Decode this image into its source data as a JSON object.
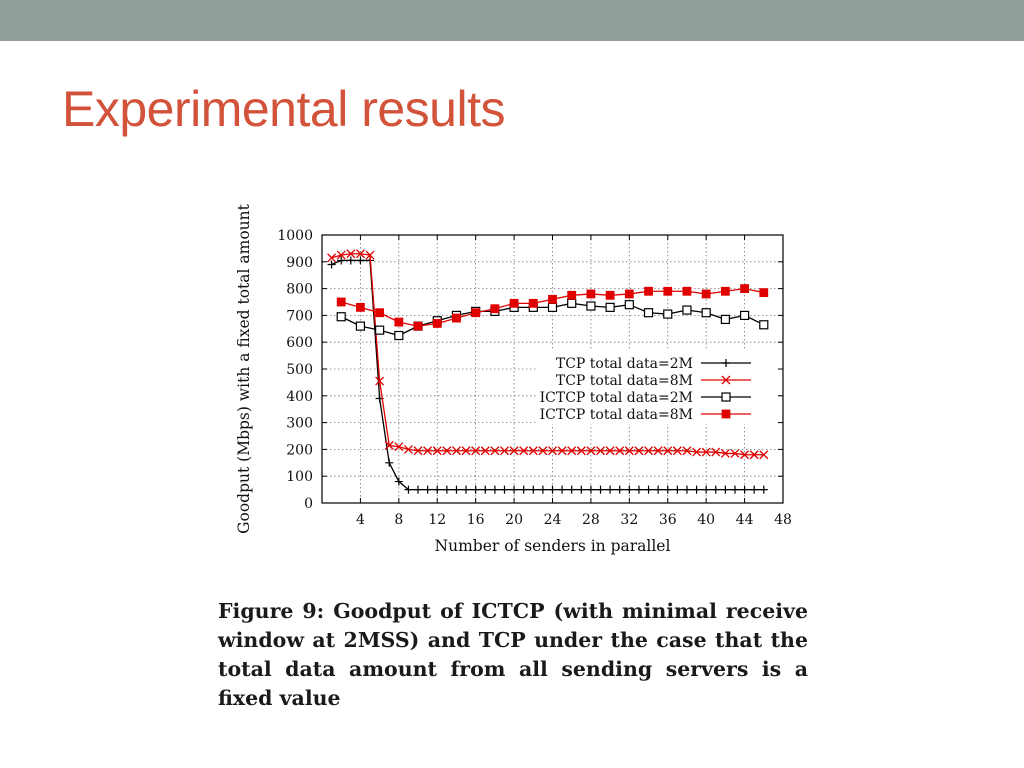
{
  "slide": {
    "title": "Experimental results",
    "caption": "Figure 9: Goodput of ICTCP (with minimal receive window at 2MSS) and TCP under the case that the total data amount from all sending servers is a fixed value"
  },
  "colors": {
    "topbar": "#919e98",
    "title": "#d2533a",
    "tcp": "#000000",
    "ictcp": "#e00000"
  },
  "chart_data": {
    "type": "line",
    "title": "",
    "xlabel": "Number of senders in parallel",
    "ylabel": "Goodput (Mbps) with a fixed total amount",
    "xlim": [
      0,
      48
    ],
    "ylim": [
      0,
      1000
    ],
    "xticks": [
      4,
      8,
      12,
      16,
      20,
      24,
      28,
      32,
      36,
      40,
      44,
      48
    ],
    "yticks": [
      0,
      100,
      200,
      300,
      400,
      500,
      600,
      700,
      800,
      900,
      1000
    ],
    "grid": true,
    "legend_position": "middle-right",
    "series": [
      {
        "name": "TCP total data=2M",
        "marker": "plus",
        "color": "#000000",
        "x": [
          1,
          2,
          3,
          4,
          5,
          6,
          7,
          8,
          9,
          10,
          11,
          12,
          13,
          14,
          15,
          16,
          17,
          18,
          19,
          20,
          21,
          22,
          23,
          24,
          25,
          26,
          27,
          28,
          29,
          30,
          31,
          32,
          33,
          34,
          35,
          36,
          37,
          38,
          39,
          40,
          41,
          42,
          43,
          44,
          45,
          46
        ],
        "y": [
          890,
          905,
          905,
          905,
          905,
          390,
          150,
          80,
          50,
          50,
          50,
          50,
          50,
          50,
          50,
          50,
          50,
          50,
          50,
          50,
          50,
          50,
          50,
          50,
          50,
          50,
          50,
          50,
          50,
          50,
          50,
          50,
          50,
          50,
          50,
          50,
          50,
          50,
          50,
          50,
          50,
          50,
          50,
          50,
          50,
          50
        ]
      },
      {
        "name": "TCP total data=8M",
        "marker": "cross",
        "color": "#e00000",
        "x": [
          1,
          2,
          3,
          4,
          5,
          6,
          7,
          8,
          9,
          10,
          11,
          12,
          13,
          14,
          15,
          16,
          17,
          18,
          19,
          20,
          21,
          22,
          23,
          24,
          25,
          26,
          27,
          28,
          29,
          30,
          31,
          32,
          33,
          34,
          35,
          36,
          37,
          38,
          39,
          40,
          41,
          42,
          43,
          44,
          45,
          46
        ],
        "y": [
          915,
          925,
          930,
          930,
          925,
          455,
          215,
          210,
          200,
          195,
          195,
          195,
          195,
          195,
          195,
          195,
          195,
          195,
          195,
          195,
          195,
          195,
          195,
          195,
          195,
          195,
          195,
          195,
          195,
          195,
          195,
          195,
          195,
          195,
          195,
          195,
          195,
          195,
          190,
          190,
          190,
          185,
          185,
          180,
          180,
          180
        ]
      },
      {
        "name": "ICTCP total data=2M",
        "marker": "square-open",
        "color": "#000000",
        "x": [
          2,
          4,
          6,
          8,
          10,
          12,
          14,
          16,
          18,
          20,
          22,
          24,
          26,
          28,
          30,
          32,
          34,
          36,
          38,
          40,
          42,
          44,
          46
        ],
        "y": [
          695,
          660,
          645,
          625,
          660,
          680,
          700,
          715,
          715,
          730,
          730,
          730,
          745,
          735,
          730,
          740,
          710,
          705,
          720,
          710,
          685,
          700,
          665
        ]
      },
      {
        "name": "ICTCP total data=8M",
        "marker": "square-filled",
        "color": "#e00000",
        "x": [
          2,
          4,
          6,
          8,
          10,
          12,
          14,
          16,
          18,
          20,
          22,
          24,
          26,
          28,
          30,
          32,
          34,
          36,
          38,
          40,
          42,
          44,
          46
        ],
        "y": [
          750,
          730,
          710,
          675,
          660,
          670,
          690,
          710,
          725,
          745,
          745,
          760,
          775,
          780,
          775,
          780,
          790,
          790,
          790,
          780,
          790,
          800,
          785
        ]
      }
    ]
  }
}
